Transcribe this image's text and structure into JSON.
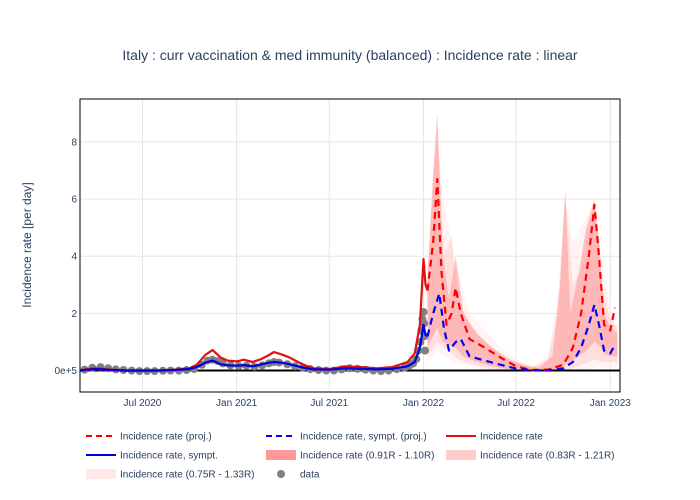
{
  "chart_data": {
    "type": "line",
    "title": "Italy : curr vaccination & med immunity (balanced) : Incidence rate : linear",
    "ylabel": "Incidence rate [per day]",
    "xlabel": "",
    "xlim": [
      "2020-03-01",
      "2023-01-20"
    ],
    "ylim": [
      -0.75,
      9.5
    ],
    "x_ticks": [
      {
        "date": "2020-07-01",
        "label": "Jul 2020"
      },
      {
        "date": "2021-01-01",
        "label": "Jan 2021"
      },
      {
        "date": "2021-07-01",
        "label": "Jul 2021"
      },
      {
        "date": "2022-01-01",
        "label": "Jan 2022"
      },
      {
        "date": "2022-07-01",
        "label": "Jul 2022"
      },
      {
        "date": "2023-01-01",
        "label": "Jan 2023"
      }
    ],
    "y_ticks": [
      {
        "value": 0,
        "label": "0e+5"
      },
      {
        "value": 2,
        "label": "2"
      },
      {
        "value": 4,
        "label": "4"
      },
      {
        "value": 6,
        "label": "6"
      },
      {
        "value": 8,
        "label": "8"
      }
    ],
    "grid": true,
    "legend_position": "bottom",
    "legend": [
      {
        "label": "Incidence rate (proj.)",
        "style": "dash",
        "color": "#ff0000"
      },
      {
        "label": "Incidence rate, sympt. (proj.)",
        "style": "dash",
        "color": "#0000ff"
      },
      {
        "label": "Incidence rate",
        "style": "solid",
        "color": "#dd1111"
      },
      {
        "label": "Incidence rate, sympt.",
        "style": "solid",
        "color": "#0000dd"
      },
      {
        "label": "Incidence rate (0.91R - 1.10R)",
        "style": "band",
        "color": "#ff9999"
      },
      {
        "label": "Incidence rate (0.83R - 1.21R)",
        "style": "band",
        "color": "#ffcccc"
      },
      {
        "label": "Incidence rate (0.75R - 1.33R)",
        "style": "band",
        "color": "#ffe9e9"
      },
      {
        "label": "data",
        "style": "marker",
        "color": "#808080"
      }
    ],
    "series": [
      {
        "name": "Incidence rate",
        "color": "#dd1111",
        "points": [
          [
            "2020-03-01",
            0.0
          ],
          [
            "2020-03-15",
            0.05
          ],
          [
            "2020-04-01",
            0.08
          ],
          [
            "2020-05-01",
            0.03
          ],
          [
            "2020-06-01",
            0.01
          ],
          [
            "2020-08-01",
            0.01
          ],
          [
            "2020-09-01",
            0.03
          ],
          [
            "2020-10-01",
            0.08
          ],
          [
            "2020-10-15",
            0.2
          ],
          [
            "2020-11-01",
            0.55
          ],
          [
            "2020-11-15",
            0.72
          ],
          [
            "2020-12-01",
            0.45
          ],
          [
            "2020-12-15",
            0.35
          ],
          [
            "2021-01-01",
            0.32
          ],
          [
            "2021-01-15",
            0.38
          ],
          [
            "2021-02-01",
            0.3
          ],
          [
            "2021-02-15",
            0.38
          ],
          [
            "2021-03-01",
            0.5
          ],
          [
            "2021-03-15",
            0.65
          ],
          [
            "2021-04-01",
            0.55
          ],
          [
            "2021-04-15",
            0.45
          ],
          [
            "2021-05-01",
            0.3
          ],
          [
            "2021-05-15",
            0.18
          ],
          [
            "2021-06-01",
            0.08
          ],
          [
            "2021-07-01",
            0.05
          ],
          [
            "2021-08-01",
            0.15
          ],
          [
            "2021-09-01",
            0.12
          ],
          [
            "2021-10-01",
            0.08
          ],
          [
            "2021-11-01",
            0.12
          ],
          [
            "2021-12-01",
            0.3
          ],
          [
            "2021-12-15",
            0.6
          ],
          [
            "2021-12-25",
            1.6
          ],
          [
            "2022-01-01",
            3.9
          ],
          [
            "2022-01-05",
            3.0
          ],
          [
            "2022-01-09",
            2.8
          ]
        ]
      },
      {
        "name": "Incidence rate, sympt.",
        "color": "#0000dd",
        "points": [
          [
            "2020-03-01",
            0.0
          ],
          [
            "2020-03-15",
            0.03
          ],
          [
            "2020-04-01",
            0.05
          ],
          [
            "2020-05-01",
            0.02
          ],
          [
            "2020-06-01",
            0.0
          ],
          [
            "2020-08-01",
            0.0
          ],
          [
            "2020-09-01",
            0.02
          ],
          [
            "2020-10-01",
            0.05
          ],
          [
            "2020-10-15",
            0.12
          ],
          [
            "2020-11-01",
            0.28
          ],
          [
            "2020-11-15",
            0.35
          ],
          [
            "2020-12-01",
            0.22
          ],
          [
            "2020-12-15",
            0.18
          ],
          [
            "2021-01-01",
            0.17
          ],
          [
            "2021-01-15",
            0.19
          ],
          [
            "2021-02-01",
            0.15
          ],
          [
            "2021-02-15",
            0.2
          ],
          [
            "2021-03-01",
            0.26
          ],
          [
            "2021-03-15",
            0.3
          ],
          [
            "2021-04-01",
            0.27
          ],
          [
            "2021-04-15",
            0.22
          ],
          [
            "2021-05-01",
            0.15
          ],
          [
            "2021-05-15",
            0.09
          ],
          [
            "2021-06-01",
            0.04
          ],
          [
            "2021-07-01",
            0.03
          ],
          [
            "2021-08-01",
            0.08
          ],
          [
            "2021-09-01",
            0.06
          ],
          [
            "2021-10-01",
            0.04
          ],
          [
            "2021-11-01",
            0.06
          ],
          [
            "2021-12-01",
            0.15
          ],
          [
            "2021-12-15",
            0.3
          ],
          [
            "2021-12-25",
            0.8
          ],
          [
            "2022-01-01",
            1.6
          ],
          [
            "2022-01-05",
            1.25
          ],
          [
            "2022-01-09",
            1.2
          ]
        ]
      },
      {
        "name": "Incidence rate (proj.)",
        "color": "#ff0000",
        "points": [
          [
            "2022-01-09",
            2.8
          ],
          [
            "2022-01-20",
            4.5
          ],
          [
            "2022-01-28",
            6.7
          ],
          [
            "2022-02-05",
            3.5
          ],
          [
            "2022-02-15",
            1.6
          ],
          [
            "2022-02-25",
            2.0
          ],
          [
            "2022-03-05",
            2.9
          ],
          [
            "2022-03-15",
            2.0
          ],
          [
            "2022-04-01",
            1.1
          ],
          [
            "2022-05-01",
            0.8
          ],
          [
            "2022-06-01",
            0.45
          ],
          [
            "2022-07-01",
            0.15
          ],
          [
            "2022-08-01",
            0.02
          ],
          [
            "2022-09-01",
            0.03
          ],
          [
            "2022-10-01",
            0.2
          ],
          [
            "2022-10-20",
            0.8
          ],
          [
            "2022-11-05",
            2.0
          ],
          [
            "2022-11-20",
            4.0
          ],
          [
            "2022-12-01",
            5.8
          ],
          [
            "2022-12-10",
            4.0
          ],
          [
            "2022-12-20",
            1.6
          ],
          [
            "2023-01-01",
            1.4
          ],
          [
            "2023-01-10",
            2.2
          ]
        ]
      },
      {
        "name": "Incidence rate, sympt. (proj.)",
        "color": "#0000ff",
        "points": [
          [
            "2022-01-09",
            1.2
          ],
          [
            "2022-01-20",
            2.0
          ],
          [
            "2022-02-01",
            2.7
          ],
          [
            "2022-02-10",
            1.5
          ],
          [
            "2022-02-20",
            0.7
          ],
          [
            "2022-03-05",
            1.0
          ],
          [
            "2022-03-15",
            1.1
          ],
          [
            "2022-04-01",
            0.5
          ],
          [
            "2022-05-01",
            0.35
          ],
          [
            "2022-06-01",
            0.2
          ],
          [
            "2022-07-01",
            0.07
          ],
          [
            "2022-08-01",
            0.01
          ],
          [
            "2022-09-01",
            0.01
          ],
          [
            "2022-10-01",
            0.08
          ],
          [
            "2022-10-20",
            0.3
          ],
          [
            "2022-11-05",
            0.8
          ],
          [
            "2022-11-20",
            1.6
          ],
          [
            "2022-12-01",
            2.3
          ],
          [
            "2022-12-10",
            1.6
          ],
          [
            "2022-12-20",
            0.7
          ],
          [
            "2023-01-01",
            0.6
          ],
          [
            "2023-01-10",
            0.9
          ]
        ]
      }
    ],
    "bands": [
      {
        "name": "Incidence rate (0.75R - 1.33R)",
        "color": "#ffe9e9",
        "points": [
          [
            "2022-01-09",
            0.3,
            3.5
          ],
          [
            "2022-01-20",
            0.5,
            6.0
          ],
          [
            "2022-01-28",
            0.7,
            8.0
          ],
          [
            "2022-02-10",
            0.5,
            6.0
          ],
          [
            "2022-03-01",
            0.3,
            4.0
          ],
          [
            "2022-04-01",
            0.15,
            2.0
          ],
          [
            "2022-05-01",
            0.05,
            1.4
          ],
          [
            "2022-06-01",
            0.02,
            0.8
          ],
          [
            "2022-07-01",
            0.0,
            0.4
          ],
          [
            "2022-08-01",
            0.0,
            0.15
          ],
          [
            "2022-09-01",
            0.0,
            0.5
          ],
          [
            "2022-09-20",
            0.0,
            2.5
          ],
          [
            "2022-10-05",
            0.0,
            6.0
          ],
          [
            "2022-10-20",
            0.0,
            4.5
          ],
          [
            "2022-11-05",
            0.0,
            5.0
          ],
          [
            "2022-11-20",
            0.05,
            5.5
          ],
          [
            "2022-12-01",
            0.1,
            6.0
          ],
          [
            "2022-12-15",
            0.1,
            4.0
          ],
          [
            "2023-01-01",
            0.1,
            2.0
          ],
          [
            "2023-01-15",
            0.1,
            1.5
          ]
        ]
      },
      {
        "name": "Incidence rate (0.83R - 1.21R)",
        "color": "#ffcccc",
        "points": [
          [
            "2022-01-09",
            0.5,
            3.3
          ],
          [
            "2022-01-20",
            0.8,
            6.5
          ],
          [
            "2022-01-28",
            1.0,
            8.5
          ],
          [
            "2022-02-10",
            0.8,
            4.0
          ],
          [
            "2022-02-25",
            0.6,
            4.7
          ],
          [
            "2022-03-10",
            0.4,
            2.5
          ],
          [
            "2022-04-01",
            0.25,
            1.6
          ],
          [
            "2022-05-01",
            0.1,
            1.0
          ],
          [
            "2022-06-01",
            0.03,
            0.6
          ],
          [
            "2022-07-01",
            0.0,
            0.3
          ],
          [
            "2022-08-01",
            0.0,
            0.1
          ],
          [
            "2022-09-01",
            0.0,
            0.4
          ],
          [
            "2022-09-20",
            0.0,
            2.0
          ],
          [
            "2022-10-05",
            0.0,
            6.2
          ],
          [
            "2022-10-20",
            0.1,
            3.0
          ],
          [
            "2022-11-05",
            0.2,
            3.5
          ],
          [
            "2022-11-20",
            0.3,
            5.0
          ],
          [
            "2022-12-01",
            0.4,
            5.5
          ],
          [
            "2022-12-15",
            0.3,
            3.0
          ],
          [
            "2023-01-01",
            0.3,
            1.8
          ],
          [
            "2023-01-15",
            0.3,
            1.5
          ]
        ]
      },
      {
        "name": "Incidence rate (0.91R - 1.10R)",
        "color": "#ff9999",
        "points": [
          [
            "2022-01-09",
            0.8,
            3.2
          ],
          [
            "2022-01-20",
            1.2,
            7.0
          ],
          [
            "2022-01-28",
            1.5,
            9.0
          ],
          [
            "2022-02-08",
            1.0,
            4.0
          ],
          [
            "2022-02-20",
            0.9,
            2.5
          ],
          [
            "2022-03-05",
            0.8,
            4.0
          ],
          [
            "2022-03-20",
            0.5,
            2.0
          ],
          [
            "2022-04-15",
            0.3,
            1.3
          ],
          [
            "2022-05-15",
            0.15,
            0.8
          ],
          [
            "2022-06-15",
            0.05,
            0.4
          ],
          [
            "2022-07-15",
            0.0,
            0.2
          ],
          [
            "2022-08-15",
            0.0,
            0.1
          ],
          [
            "2022-09-10",
            0.0,
            0.5
          ],
          [
            "2022-09-25",
            0.1,
            3.0
          ],
          [
            "2022-10-05",
            0.2,
            6.3
          ],
          [
            "2022-10-15",
            0.3,
            2.0
          ],
          [
            "2022-11-01",
            0.5,
            3.5
          ],
          [
            "2022-11-15",
            0.7,
            5.0
          ],
          [
            "2022-12-01",
            1.0,
            6.0
          ],
          [
            "2022-12-10",
            0.9,
            4.5
          ],
          [
            "2022-12-20",
            0.6,
            2.0
          ],
          [
            "2023-01-01",
            0.5,
            1.5
          ],
          [
            "2023-01-15",
            0.5,
            1.3
          ]
        ]
      }
    ],
    "scatter": {
      "name": "data",
      "color": "#808080",
      "points": [
        [
          "2020-03-10",
          0.03
        ],
        [
          "2020-03-25",
          0.1
        ],
        [
          "2020-04-10",
          0.12
        ],
        [
          "2020-04-25",
          0.08
        ],
        [
          "2020-05-10",
          0.04
        ],
        [
          "2020-05-25",
          0.02
        ],
        [
          "2020-06-10",
          0.0
        ],
        [
          "2020-06-25",
          -0.02
        ],
        [
          "2020-07-10",
          -0.02
        ],
        [
          "2020-07-25",
          -0.02
        ],
        [
          "2020-08-10",
          -0.01
        ],
        [
          "2020-08-25",
          0.0
        ],
        [
          "2020-09-10",
          0.0
        ],
        [
          "2020-09-25",
          0.02
        ],
        [
          "2020-10-10",
          0.05
        ],
        [
          "2020-10-25",
          0.2
        ],
        [
          "2020-11-05",
          0.35
        ],
        [
          "2020-11-15",
          0.38
        ],
        [
          "2020-11-25",
          0.33
        ],
        [
          "2020-12-05",
          0.25
        ],
        [
          "2020-12-20",
          0.18
        ],
        [
          "2021-01-05",
          0.16
        ],
        [
          "2021-01-20",
          0.17
        ],
        [
          "2021-02-05",
          0.14
        ],
        [
          "2021-02-20",
          0.18
        ],
        [
          "2021-03-05",
          0.25
        ],
        [
          "2021-03-15",
          0.3
        ],
        [
          "2021-03-25",
          0.28
        ],
        [
          "2021-04-10",
          0.22
        ],
        [
          "2021-04-25",
          0.15
        ],
        [
          "2021-05-10",
          0.1
        ],
        [
          "2021-05-25",
          0.05
        ],
        [
          "2021-06-10",
          0.02
        ],
        [
          "2021-06-25",
          0.0
        ],
        [
          "2021-07-10",
          0.0
        ],
        [
          "2021-07-25",
          0.04
        ],
        [
          "2021-08-10",
          0.08
        ],
        [
          "2021-08-25",
          0.06
        ],
        [
          "2021-09-10",
          0.03
        ],
        [
          "2021-09-25",
          0.0
        ],
        [
          "2021-10-10",
          -0.02
        ],
        [
          "2021-10-25",
          0.0
        ],
        [
          "2021-11-10",
          0.05
        ],
        [
          "2021-11-25",
          0.1
        ],
        [
          "2021-12-05",
          0.18
        ],
        [
          "2021-12-12",
          0.25
        ],
        [
          "2021-12-18",
          0.4
        ],
        [
          "2021-12-22",
          0.7
        ],
        [
          "2021-12-26",
          1.0
        ],
        [
          "2021-12-28",
          1.4
        ],
        [
          "2021-12-30",
          1.8
        ],
        [
          "2022-01-01",
          2.05
        ],
        [
          "2022-01-02",
          1.65
        ],
        [
          "2022-01-03",
          1.2
        ],
        [
          "2022-01-04",
          0.7
        ]
      ]
    }
  }
}
